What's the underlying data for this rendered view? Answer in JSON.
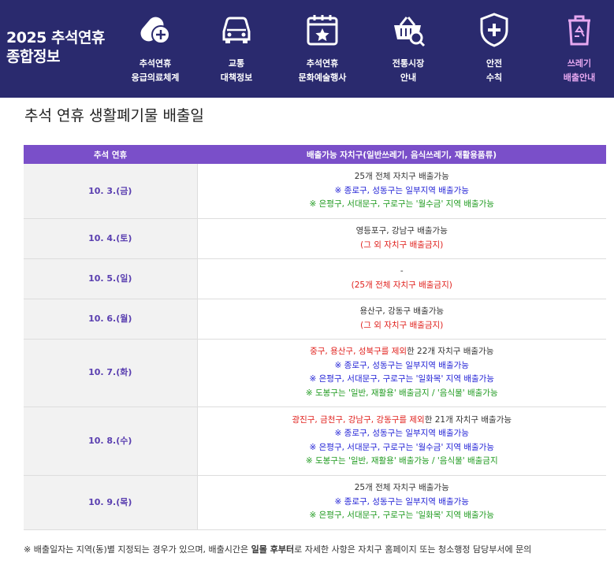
{
  "header": {
    "brand_line1": "2025 추석연휴",
    "brand_line2": "종합정보",
    "nav": [
      {
        "line1": "추석연휴",
        "line2": "응급의료체계",
        "icon": "medicine-icon"
      },
      {
        "line1": "교통",
        "line2": "대책정보",
        "icon": "car-icon"
      },
      {
        "line1": "추석연휴",
        "line2": "문화예술행사",
        "icon": "calendar-icon"
      },
      {
        "line1": "전통시장",
        "line2": "안내",
        "icon": "basket-icon"
      },
      {
        "line1": "안전",
        "line2": "수칙",
        "icon": "shield-icon"
      },
      {
        "line1": "쓰레기",
        "line2": "배출안내",
        "icon": "trash-icon",
        "active": true
      }
    ]
  },
  "page_title": "추석 연휴 생활폐기물 배출일",
  "table": {
    "headers": [
      "추석 연휴",
      "배출가능 자치구(일반쓰레기, 음식쓰레기, 재활용품류)"
    ],
    "rows": [
      {
        "date": "10. 3.(금)",
        "lines": [
          {
            "text": "25개 전체 자치구 배출가능",
            "color": "default"
          },
          {
            "text": "※ 종로구, 성동구는 일부지역 배출가능",
            "color": "blue"
          },
          {
            "text": "※ 은평구, 서대문구, 구로구는 '월수금' 지역 배출가능",
            "color": "green"
          }
        ]
      },
      {
        "date": "10. 4.(토)",
        "lines": [
          {
            "text": "영등포구, 강남구 배출가능",
            "color": "default"
          },
          {
            "text": "(그 외 자치구 배출금지)",
            "color": "red"
          }
        ]
      },
      {
        "date": "10. 5.(일)",
        "lines": [
          {
            "text": "-",
            "color": "default"
          },
          {
            "text": "(25개 전체 자치구 배출금지)",
            "color": "red"
          }
        ]
      },
      {
        "date": "10. 6.(월)",
        "lines": [
          {
            "text": "용산구, 강동구 배출가능",
            "color": "default"
          },
          {
            "text": "(그 외 자치구 배출금지)",
            "color": "red"
          }
        ]
      },
      {
        "date": "10. 7.(화)",
        "lines": [
          {
            "text": "중구, 용산구, 성북구를 제외",
            "color": "red",
            "suffix": "한 22개 자치구 배출가능"
          },
          {
            "text": "※ 종로구, 성동구는 일부지역 배출가능",
            "color": "blue"
          },
          {
            "text": "※ 은평구, 서대문구, 구로구는 '일화목' 지역 배출가능",
            "color": "blue"
          },
          {
            "text": "※ 도봉구는 '일반, 재활용' 배출금지 / '음식물' 배출가능",
            "color": "green"
          }
        ]
      },
      {
        "date": "10. 8.(수)",
        "lines": [
          {
            "text": "광진구, 금천구, 강남구, 강동구를 제외",
            "color": "red",
            "suffix": "한 21개 자치구 배출가능"
          },
          {
            "text": "※ 종로구, 성동구는 일부지역 배출가능",
            "color": "blue"
          },
          {
            "text": "※ 은평구, 서대문구, 구로구는 '월수금' 지역 배출가능",
            "color": "blue"
          },
          {
            "text": "※ 도봉구는 '일반, 재활용' 배출가능 / '음식물' 배출금지",
            "color": "green"
          }
        ]
      },
      {
        "date": "10. 9.(목)",
        "lines": [
          {
            "text": "25개 전체 자치구 배출가능",
            "color": "default"
          },
          {
            "text": "※ 종로구, 성동구는 일부지역 배출가능",
            "color": "blue"
          },
          {
            "text": "※ 은평구, 서대문구, 구로구는 '일화목' 지역 배출가능",
            "color": "green"
          }
        ]
      }
    ]
  },
  "footnote": {
    "before": "※ 배출일자는 지역(동)별 지정되는 경우가 있으며, 배출시간은 ",
    "bold": "일몰 후부터",
    "after": "로 자세한 사항은 자치구 홈페이지 또는 청소행정 담당부서에 문의"
  },
  "colors": {
    "header_bg": "#2a2a6e",
    "table_head": "#7a4fc9",
    "date_text": "#5a3fb0",
    "red": "#e0201c",
    "blue": "#2222d6",
    "green": "#1f9a1f"
  }
}
